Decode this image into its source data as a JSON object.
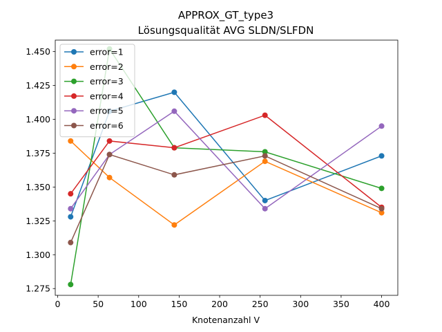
{
  "chart_data": {
    "type": "line",
    "title": "APPROX_GT_type3",
    "subtitle": "Lösungsqualität AVG SLDN/SLFDN",
    "xlabel": "Knotenanzahl V",
    "ylabel": "",
    "xlim": [
      -3,
      420
    ],
    "ylim": [
      1.27,
      1.4585
    ],
    "xticks": [
      0,
      50,
      100,
      150,
      200,
      250,
      300,
      350,
      400
    ],
    "yticks": [
      1.275,
      1.3,
      1.325,
      1.35,
      1.375,
      1.4,
      1.425,
      1.45
    ],
    "xtick_labels": [
      "0",
      "50",
      "100",
      "150",
      "200",
      "250",
      "300",
      "350",
      "400"
    ],
    "ytick_labels": [
      "1.275",
      "1.300",
      "1.325",
      "1.350",
      "1.375",
      "1.400",
      "1.425",
      "1.450"
    ],
    "grid": false,
    "legend_position": "upper-left",
    "x": [
      16,
      64,
      144,
      256,
      400
    ],
    "series": [
      {
        "name": "error=1",
        "color": "#1f77b4",
        "values": [
          1.328,
          1.406,
          1.42,
          1.34,
          1.373
        ]
      },
      {
        "name": "error=2",
        "color": "#ff7f0e",
        "values": [
          1.384,
          1.357,
          1.322,
          1.369,
          1.331
        ]
      },
      {
        "name": "error=3",
        "color": "#2ca02c",
        "values": [
          1.278,
          1.452,
          1.379,
          1.376,
          1.349
        ]
      },
      {
        "name": "error=4",
        "color": "#d62728",
        "values": [
          1.345,
          1.384,
          1.379,
          1.403,
          1.335
        ]
      },
      {
        "name": "error=5",
        "color": "#9467bd",
        "values": [
          1.334,
          1.374,
          1.406,
          1.334,
          1.395
        ]
      },
      {
        "name": "error=6",
        "color": "#8c564b",
        "values": [
          1.309,
          1.374,
          1.359,
          1.373,
          1.334
        ]
      }
    ]
  }
}
